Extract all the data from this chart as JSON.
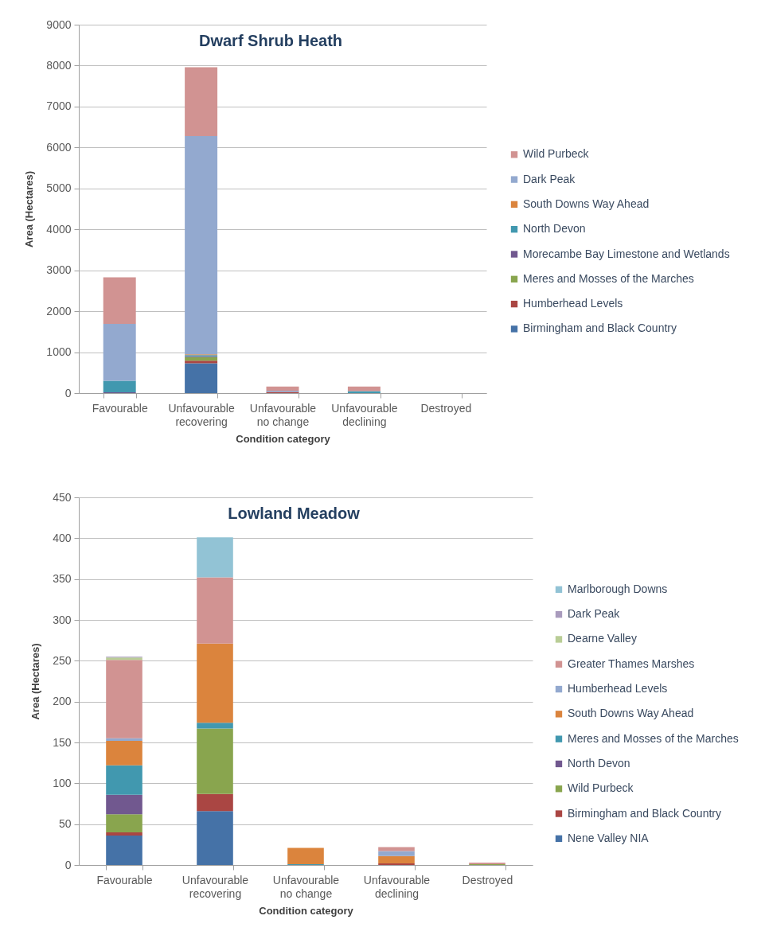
{
  "chart_data": [
    {
      "type": "bar",
      "title": "Dwarf Shrub Heath",
      "xlabel": "Condition category",
      "ylabel": "Area (Hectares)",
      "categories": [
        "Favourable",
        "Unfavourable recovering",
        "Unfavourable no change",
        "Unfavourable declining",
        "Destroyed"
      ],
      "stacked": true,
      "ylim": [
        0,
        9000
      ],
      "yticks": [
        0,
        1000,
        2000,
        3000,
        4000,
        5000,
        6000,
        7000,
        8000,
        9000
      ],
      "grid": "y",
      "legend": "right",
      "series": [
        {
          "name": "Birmingham and Black Country",
          "color": "#4572a7",
          "values": [
            null,
            730,
            null,
            null,
            null
          ]
        },
        {
          "name": "Humberhead Levels",
          "color": "#aa4643",
          "values": [
            null,
            60,
            30,
            null,
            null
          ]
        },
        {
          "name": "Meres and Mosses of the Marches",
          "color": "#89a54e",
          "values": [
            null,
            90,
            null,
            null,
            null
          ]
        },
        {
          "name": "Morecambe Bay Limestone and Wetlands",
          "color": "#71588f",
          "values": [
            20,
            20,
            null,
            null,
            null
          ]
        },
        {
          "name": "North Devon",
          "color": "#4198af",
          "values": [
            280,
            30,
            null,
            50,
            null
          ]
        },
        {
          "name": "South Downs Way Ahead",
          "color": "#db843d",
          "values": [
            null,
            20,
            null,
            null,
            null
          ]
        },
        {
          "name": "Dark Peak",
          "color": "#93a9cf",
          "values": [
            1390,
            5330,
            30,
            null,
            null
          ]
        },
        {
          "name": "Wild Purbeck",
          "color": "#d19392",
          "values": [
            1140,
            1680,
            100,
            110,
            null
          ]
        }
      ]
    },
    {
      "type": "bar",
      "title": "Lowland Meadow",
      "xlabel": "Condition category",
      "ylabel": "Area (Hectares)",
      "categories": [
        "Favourable",
        "Unfavourable recovering",
        "Unfavourable no change",
        "Unfavourable declining",
        "Destroyed"
      ],
      "stacked": true,
      "ylim": [
        0,
        450
      ],
      "yticks": [
        0,
        50,
        100,
        150,
        200,
        250,
        300,
        350,
        400,
        450
      ],
      "grid": "y",
      "legend": "right",
      "series": [
        {
          "name": "Nene Valley NIA",
          "color": "#4572a7",
          "values": [
            36,
            66,
            null,
            null,
            null
          ]
        },
        {
          "name": "Birmingham and Black Country",
          "color": "#aa4643",
          "values": [
            4,
            21,
            null,
            2,
            null
          ]
        },
        {
          "name": "Wild Purbeck",
          "color": "#89a54e",
          "values": [
            22,
            80,
            null,
            null,
            1
          ]
        },
        {
          "name": "North Devon",
          "color": "#71588f",
          "values": [
            24,
            null,
            null,
            null,
            null
          ]
        },
        {
          "name": "Meres and Mosses of the Marches",
          "color": "#4198af",
          "values": [
            36,
            7,
            1,
            null,
            null
          ]
        },
        {
          "name": "South Downs Way Ahead",
          "color": "#db843d",
          "values": [
            30,
            97,
            20,
            9,
            null
          ]
        },
        {
          "name": "Humberhead Levels",
          "color": "#93a9cf",
          "values": [
            3,
            null,
            null,
            6,
            null
          ]
        },
        {
          "name": "Greater Thames Marshes",
          "color": "#d19392",
          "values": [
            96,
            81,
            null,
            5,
            2
          ]
        },
        {
          "name": "Dearne Valley",
          "color": "#b9cd96",
          "values": [
            3,
            null,
            null,
            null,
            null
          ]
        },
        {
          "name": "Dark Peak",
          "color": "#a99bbd",
          "values": [
            1,
            null,
            null,
            null,
            null
          ]
        },
        {
          "name": "Marlborough Downs",
          "color": "#92c3d5",
          "values": [
            null,
            49,
            null,
            null,
            null
          ]
        }
      ]
    }
  ]
}
